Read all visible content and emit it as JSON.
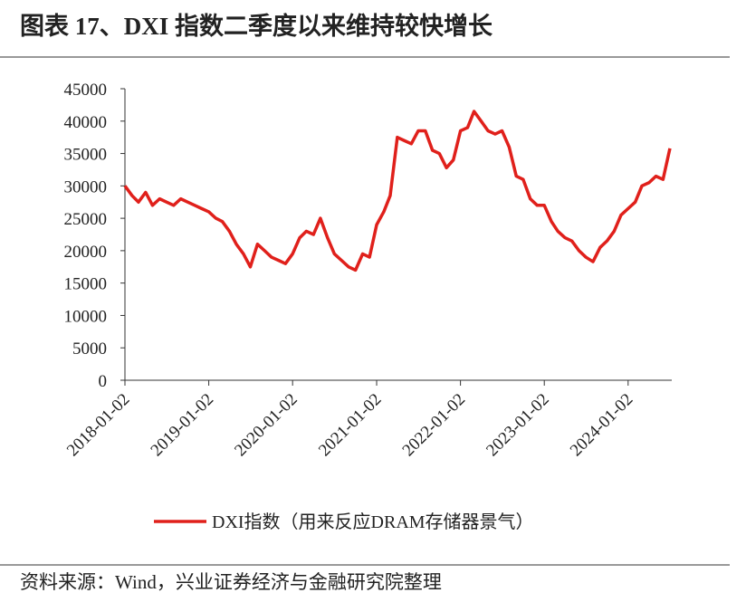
{
  "chart_data": {
    "type": "line",
    "title": "图表 17、DXI 指数二季度以来维持较快增长",
    "source": "资料来源：Wind，兴业证券经济与金融研究院整理",
    "x": [
      "2018-01-02",
      "2018-02-02",
      "2018-03-02",
      "2018-04-02",
      "2018-05-02",
      "2018-06-02",
      "2018-07-02",
      "2018-08-02",
      "2018-09-02",
      "2018-10-02",
      "2018-11-02",
      "2018-12-02",
      "2019-01-02",
      "2019-02-02",
      "2019-03-02",
      "2019-04-02",
      "2019-05-02",
      "2019-06-02",
      "2019-07-02",
      "2019-08-02",
      "2019-09-02",
      "2019-10-02",
      "2019-11-02",
      "2019-12-02",
      "2020-01-02",
      "2020-02-02",
      "2020-03-02",
      "2020-04-02",
      "2020-05-02",
      "2020-06-02",
      "2020-07-02",
      "2020-08-02",
      "2020-09-02",
      "2020-10-02",
      "2020-11-02",
      "2020-12-02",
      "2021-01-02",
      "2021-02-02",
      "2021-03-02",
      "2021-04-02",
      "2021-05-02",
      "2021-06-02",
      "2021-07-02",
      "2021-08-02",
      "2021-09-02",
      "2021-10-02",
      "2021-11-02",
      "2021-12-02",
      "2022-01-02",
      "2022-02-02",
      "2022-03-02",
      "2022-04-02",
      "2022-05-02",
      "2022-06-02",
      "2022-07-02",
      "2022-08-02",
      "2022-09-02",
      "2022-10-02",
      "2022-11-02",
      "2022-12-02",
      "2023-01-02",
      "2023-02-02",
      "2023-03-02",
      "2023-04-02",
      "2023-05-02",
      "2023-06-02",
      "2023-07-02",
      "2023-08-02",
      "2023-09-02",
      "2023-10-02",
      "2023-11-02",
      "2023-12-02",
      "2024-01-02",
      "2024-02-02",
      "2024-03-02",
      "2024-04-02",
      "2024-05-02",
      "2024-06-02",
      "2024-07-02"
    ],
    "series": [
      {
        "name": "DXI指数（用来反应DRAM存储器景气）",
        "color": "#e0201b",
        "values": [
          30000,
          28500,
          27500,
          29000,
          27000,
          28000,
          27500,
          27000,
          28000,
          27500,
          27000,
          26500,
          26000,
          25000,
          24500,
          23000,
          21000,
          19500,
          17500,
          21000,
          20000,
          19000,
          18500,
          18000,
          19500,
          22000,
          23000,
          22500,
          25000,
          22000,
          19500,
          18500,
          17500,
          17000,
          19500,
          19000,
          24000,
          26000,
          28500,
          37500,
          37000,
          36500,
          38500,
          38500,
          35500,
          35000,
          32800,
          34000,
          38500,
          39000,
          41500,
          40000,
          38500,
          38000,
          38500,
          36000,
          31500,
          31000,
          28000,
          27000,
          27000,
          24500,
          23000,
          22000,
          21500,
          20000,
          19000,
          18300,
          20500,
          21500,
          23000,
          25500,
          26500,
          27500,
          30000,
          30500,
          31500,
          31000,
          35800
        ]
      }
    ],
    "xlim": [
      "2018-01-02",
      "2024-07-10"
    ],
    "xticks": [
      "2018-01-02",
      "2019-01-02",
      "2020-01-02",
      "2021-01-02",
      "2022-01-02",
      "2023-01-02",
      "2024-01-02"
    ],
    "ylim": [
      0,
      45000
    ],
    "yticks": [
      0,
      5000,
      10000,
      15000,
      20000,
      25000,
      30000,
      35000,
      40000,
      45000
    ],
    "grid": false,
    "legend": "bottom"
  }
}
